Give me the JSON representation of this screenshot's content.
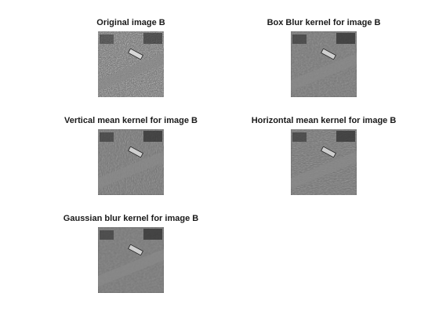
{
  "figure": {
    "panels": [
      {
        "title": "Original image B",
        "image": "noisy-grayscale-aerial-street-bus"
      },
      {
        "title": "Box Blur kernel for image B",
        "image": "smoothed-grayscale-aerial-street-bus"
      },
      {
        "title": "Vertical mean kernel for image B",
        "image": "vertically-smoothed-grayscale-aerial-street-bus"
      },
      {
        "title": "Horizontal mean kernel for image B",
        "image": "horizontally-smoothed-grayscale-aerial-street-bus"
      },
      {
        "title": "Gaussian blur kernel for image B",
        "image": "gaussian-smoothed-grayscale-aerial-street-bus"
      }
    ]
  }
}
